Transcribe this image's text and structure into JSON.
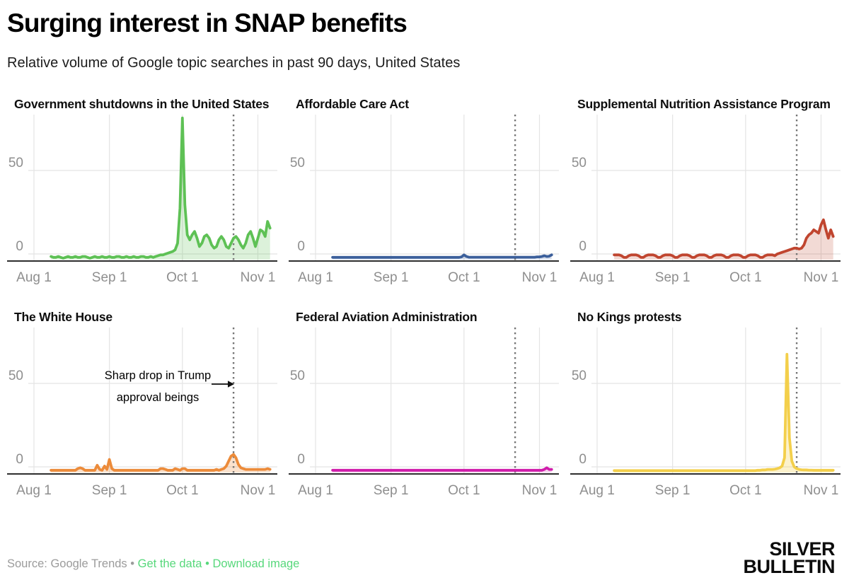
{
  "header": {
    "title": "Surging interest in SNAP benefits",
    "subtitle": "Relative volume of Google topic searches in past 90 days, United States"
  },
  "footer": {
    "source": "Source: Google Trends",
    "separator": "•",
    "links": [
      {
        "label": "Get the data"
      },
      {
        "label": "Download image"
      }
    ],
    "logo_line1": "SILVER",
    "logo_line2": "BULLETIN",
    "link_color": "#57d87b"
  },
  "chart_data": {
    "type": "area",
    "title": "Surging interest in SNAP benefits",
    "subtitle": "Relative volume of Google topic searches in past 90 days, United States",
    "xlabel": "",
    "ylabel": "",
    "grid": true,
    "shared": {
      "x_tick_labels": [
        "Aug 1",
        "Sep 1",
        "Oct 1",
        "Nov 1"
      ],
      "x_tick_days": [
        0,
        31,
        61,
        92
      ],
      "y_ticks": [
        0,
        50
      ],
      "ylim": [
        0,
        85
      ],
      "xlim_days": [
        -2,
        100
      ],
      "first_value_day": 7,
      "dotted_vline_day": 82,
      "gridline_color": "#e4e4e4",
      "axis_color": "#2e2e2e",
      "dotted_line_color": "#737373",
      "tick_label_color": "#8e8e8e"
    },
    "charts": [
      {
        "title": "Government shutdowns in the United States",
        "color": "#5ec155",
        "fill": "rgba(94,193,85,0.22)",
        "values": [
          1,
          0.5,
          0.5,
          1,
          0.5,
          0,
          0.5,
          1,
          0.5,
          0.5,
          1,
          0.5,
          0.5,
          1,
          1,
          0.5,
          0,
          0.5,
          1,
          0.5,
          0.5,
          1,
          0.5,
          0.5,
          1,
          0.5,
          0.5,
          1,
          1,
          0.5,
          0.5,
          1,
          0.5,
          0.5,
          1,
          0.5,
          0.5,
          1,
          1,
          0.5,
          0.5,
          1,
          0.5,
          1,
          1.5,
          2,
          2,
          2.5,
          3,
          3.5,
          4,
          5,
          9,
          30,
          84,
          32,
          14,
          11,
          14,
          16,
          12,
          7,
          9,
          13,
          14,
          12,
          8,
          6,
          7,
          11,
          13,
          11,
          7,
          6,
          9,
          12,
          13,
          11,
          8,
          6,
          9,
          14,
          16,
          12,
          7,
          12,
          17,
          16,
          13,
          22,
          18
        ]
      },
      {
        "title": "Affordable Care Act",
        "color": "#3b5f9b",
        "fill": "rgba(59,95,155,0.18)",
        "values": [
          0.5,
          0.5,
          0.5,
          0.5,
          0.5,
          0.5,
          0.5,
          0.5,
          0.5,
          0.5,
          0.5,
          0.5,
          0.5,
          0.5,
          0.5,
          0.5,
          0.5,
          0.5,
          0.5,
          0.5,
          0.5,
          0.5,
          0.5,
          0.5,
          0.5,
          0.5,
          0.5,
          0.5,
          0.5,
          0.5,
          0.5,
          0.5,
          0.5,
          0.5,
          0.5,
          0.5,
          0.5,
          0.5,
          0.5,
          0.5,
          0.5,
          0.5,
          0.5,
          0.5,
          0.5,
          0.5,
          0.5,
          0.5,
          0.5,
          0.5,
          0.5,
          0.5,
          0.5,
          0.8,
          2,
          1,
          0.6,
          0.6,
          0.6,
          0.6,
          0.6,
          0.6,
          0.6,
          0.6,
          0.6,
          0.6,
          0.6,
          0.6,
          0.6,
          0.6,
          0.6,
          0.6,
          0.6,
          0.6,
          0.6,
          0.6,
          0.6,
          0.6,
          0.6,
          0.6,
          0.6,
          0.6,
          0.6,
          0.6,
          0.8,
          0.8,
          1,
          1.5,
          1,
          1.2,
          2
        ]
      },
      {
        "title": "Supplemental Nutrition Assistance Program",
        "color": "#c0452f",
        "fill": "rgba(192,69,47,0.2)",
        "values": [
          2,
          2,
          2,
          1.5,
          0.5,
          0.5,
          1.5,
          2,
          2,
          2,
          1.5,
          0.5,
          0.5,
          1.5,
          2,
          2,
          2,
          1.5,
          0.5,
          0.5,
          1.5,
          2,
          2,
          2,
          1.5,
          0.5,
          0.5,
          1.5,
          2,
          2,
          2,
          1.5,
          0.5,
          0.5,
          1.5,
          2,
          2,
          2,
          1.5,
          0.5,
          0.5,
          1.5,
          2,
          2,
          2,
          1.5,
          0.5,
          0.5,
          1.5,
          2,
          2,
          2,
          1.5,
          0.5,
          0.5,
          1.5,
          2,
          2,
          2,
          1.5,
          0.5,
          0.5,
          1.5,
          2,
          2,
          2,
          1.5,
          2.5,
          3,
          3.5,
          4,
          4.5,
          5,
          5.5,
          6,
          6,
          5.5,
          6,
          8,
          12,
          14,
          15,
          17,
          16,
          15,
          20,
          23,
          17,
          12,
          17,
          13
        ]
      },
      {
        "title": "The White House",
        "color": "#ec8b3a",
        "fill": "rgba(236,139,58,0.25)",
        "annotation": {
          "lines": [
            "Sharp drop in Trump",
            "approval beings"
          ]
        },
        "values": [
          0.5,
          0.5,
          0.5,
          0.5,
          0.5,
          0.5,
          0.5,
          0.5,
          0.5,
          0.5,
          0.5,
          1.5,
          2,
          1.5,
          0.5,
          0.5,
          0.5,
          0.5,
          0.5,
          3.5,
          1,
          0.5,
          3,
          1,
          7,
          1.5,
          0.5,
          0.5,
          0.5,
          0.5,
          0.5,
          0.5,
          0.5,
          0.5,
          0.5,
          0.5,
          0.5,
          0.5,
          0.5,
          0.5,
          0.5,
          0.5,
          0.5,
          0.5,
          0.5,
          1.5,
          1.5,
          1,
          0.5,
          0.5,
          0.5,
          1.5,
          1,
          0.5,
          1.5,
          1.5,
          0.5,
          0.5,
          0.5,
          0.5,
          0.5,
          0.5,
          0.5,
          0.5,
          0.5,
          0.5,
          0.5,
          0.5,
          1,
          0.5,
          1,
          1.5,
          3,
          6,
          9,
          10,
          8,
          4,
          2,
          1.5,
          1,
          1,
          1,
          1,
          1,
          1,
          1,
          1,
          1,
          1.5,
          1
        ]
      },
      {
        "title": "Federal Aviation Administration",
        "color": "#d01cab",
        "fill": "rgba(208,28,171,0.18)",
        "values": [
          0.5,
          0.5,
          0.5,
          0.5,
          0.5,
          0.5,
          0.5,
          0.5,
          0.5,
          0.5,
          0.5,
          0.5,
          0.5,
          0.5,
          0.5,
          0.5,
          0.5,
          0.5,
          0.5,
          0.5,
          0.5,
          0.5,
          0.5,
          0.5,
          0.5,
          0.5,
          0.5,
          0.5,
          0.5,
          0.5,
          0.5,
          0.5,
          0.5,
          0.5,
          0.5,
          0.5,
          0.5,
          0.5,
          0.5,
          0.5,
          0.5,
          0.5,
          0.5,
          0.5,
          0.5,
          0.5,
          0.5,
          0.5,
          0.5,
          0.5,
          0.5,
          0.5,
          0.5,
          0.5,
          0.5,
          0.5,
          0.5,
          0.5,
          0.5,
          0.5,
          0.5,
          0.5,
          0.5,
          0.5,
          0.5,
          0.5,
          0.5,
          0.5,
          0.5,
          0.5,
          0.5,
          0.5,
          0.5,
          0.5,
          0.5,
          0.5,
          0.5,
          0.5,
          0.5,
          0.5,
          0.5,
          0.5,
          0.5,
          0.5,
          0.5,
          0.5,
          0.5,
          1,
          2,
          1,
          1
        ]
      },
      {
        "title": "No Kings protests",
        "color": "#f3cf4b",
        "fill": "rgba(243,207,75,0.28)",
        "values": [
          0.3,
          0.3,
          0.3,
          0.3,
          0.3,
          0.3,
          0.3,
          0.3,
          0.3,
          0.3,
          0.3,
          0.3,
          0.3,
          0.3,
          0.3,
          0.3,
          0.3,
          0.3,
          0.3,
          0.3,
          0.3,
          0.3,
          0.3,
          0.3,
          0.3,
          0.3,
          0.3,
          0.3,
          0.3,
          0.3,
          0.3,
          0.3,
          0.3,
          0.3,
          0.3,
          0.3,
          0.3,
          0.3,
          0.3,
          0.3,
          0.3,
          0.3,
          0.3,
          0.3,
          0.3,
          0.3,
          0.3,
          0.3,
          0.3,
          0.3,
          0.3,
          0.3,
          0.3,
          0.3,
          0.3,
          0.3,
          0.3,
          0.3,
          0.3,
          0.5,
          0.5,
          0.7,
          0.7,
          1,
          1,
          1,
          1.2,
          1.5,
          2,
          3,
          8,
          70,
          20,
          6,
          2.5,
          1.5,
          1,
          0.8,
          0.7,
          0.7,
          0.6,
          0.6,
          0.5,
          0.5,
          0.5,
          0.5,
          0.5,
          0.5,
          0.5,
          0.5,
          0.5
        ]
      }
    ]
  }
}
